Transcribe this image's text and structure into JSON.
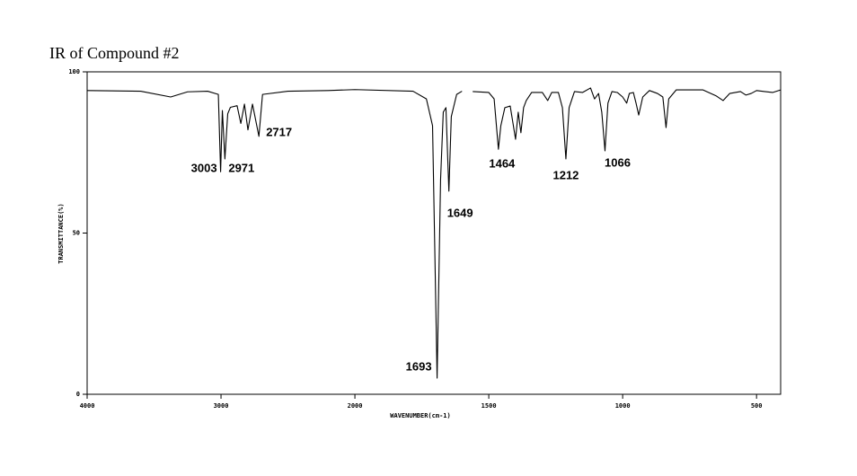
{
  "chart_data": {
    "type": "line",
    "title": "IR of Compound #2",
    "x_label": "WAVENUMBER(cm-1)",
    "y_label": "TRANSMITTANCE(%)",
    "xlim": [
      4000,
      410
    ],
    "ylim": [
      0,
      100
    ],
    "xticks": [
      4000,
      3000,
      2000,
      1500,
      1000,
      500
    ],
    "yticks": [
      0,
      50,
      100
    ],
    "x_scale_break": 2000,
    "x": [
      4000,
      3600,
      3376,
      3250,
      3100,
      3020,
      3003,
      2990,
      2971,
      2950,
      2930,
      2880,
      2852,
      2825,
      2799,
      2765,
      2717,
      2690,
      2500,
      2200,
      2000,
      1783,
      1733,
      1710,
      1693,
      1680,
      1670,
      1660,
      1649,
      1640,
      1620,
      1600,
      1570,
      1560,
      1500,
      1480,
      1464,
      1455,
      1440,
      1420,
      1400,
      1390,
      1380,
      1370,
      1360,
      1340,
      1300,
      1280,
      1265,
      1240,
      1225,
      1212,
      1200,
      1180,
      1150,
      1120,
      1105,
      1090,
      1078,
      1066,
      1055,
      1040,
      1020,
      1000,
      985,
      975,
      960,
      950,
      940,
      925,
      900,
      870,
      850,
      838,
      828,
      800,
      700,
      650,
      625,
      600,
      560,
      540,
      520,
      500,
      470,
      440,
      410
    ],
    "series": [
      {
        "color": "#000000",
        "values": [
          94.2,
          94,
          92.2,
          93.8,
          94,
          93,
          69,
          88,
          73,
          87,
          89,
          89.5,
          84,
          90,
          82,
          90,
          80,
          93,
          94,
          94.2,
          94.5,
          94,
          91.6,
          83.3,
          5,
          66.6,
          87.5,
          88.9,
          63,
          86.1,
          93,
          94,
          null,
          93.9,
          93.6,
          91.6,
          76,
          83.3,
          88.9,
          89.4,
          79.1,
          87.5,
          81.1,
          88.9,
          91.1,
          93.6,
          93.6,
          91.1,
          93.6,
          93.6,
          88.9,
          73,
          88.9,
          93.9,
          93.6,
          95,
          91.6,
          93.3,
          87.5,
          75.5,
          90.3,
          93.9,
          93.6,
          92.2,
          90.3,
          93.3,
          93.6,
          90.3,
          86.6,
          92.2,
          94.2,
          93.3,
          92.2,
          82.7,
          91.6,
          94.4,
          94.4,
          92.5,
          91.1,
          93.3,
          93.9,
          92.8,
          93.3,
          94.2,
          93.9,
          93.6,
          94.4
        ]
      }
    ],
    "peak_labels": [
      3003,
      2971,
      2717,
      1693,
      1649,
      1464,
      1212,
      1066
    ]
  }
}
